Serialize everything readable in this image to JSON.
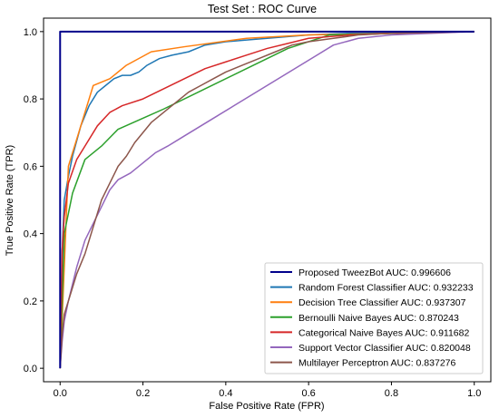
{
  "chart_data": {
    "type": "line",
    "title": "Test Set : ROC Curve",
    "xlabel": "False Positive Rate (FPR)",
    "ylabel": "True Positive Rate (TPR)",
    "xlim": [
      -0.04,
      1.04
    ],
    "ylim": [
      -0.04,
      1.04
    ],
    "xticks": [
      0.0,
      0.2,
      0.4,
      0.6,
      0.8,
      1.0
    ],
    "yticks": [
      0.0,
      0.2,
      0.4,
      0.6,
      0.8,
      1.0
    ],
    "xtick_labels": [
      "0.0",
      "0.2",
      "0.4",
      "0.6",
      "0.8",
      "1.0"
    ],
    "ytick_labels": [
      "0.0",
      "0.2",
      "0.4",
      "0.6",
      "0.8",
      "1.0"
    ],
    "grid": false,
    "legend_position": "lower-right",
    "series": [
      {
        "name": "Proposed TweezBot AUC: 0.996606",
        "color": "#00008b",
        "x": [
          0,
          0,
          0.005,
          1
        ],
        "y": [
          0,
          1.0,
          1.0,
          1.0
        ]
      },
      {
        "name": "Random Forest Classifier AUC: 0.932233",
        "color": "#1f77b4",
        "x": [
          0,
          0.005,
          0.01,
          0.02,
          0.03,
          0.05,
          0.07,
          0.09,
          0.11,
          0.13,
          0.15,
          0.17,
          0.19,
          0.21,
          0.24,
          0.27,
          0.31,
          0.35,
          0.4,
          0.45,
          0.5,
          0.55,
          0.6,
          0.7,
          0.8,
          1.0
        ],
        "y": [
          0,
          0.35,
          0.5,
          0.57,
          0.63,
          0.72,
          0.78,
          0.82,
          0.84,
          0.86,
          0.87,
          0.87,
          0.88,
          0.9,
          0.92,
          0.93,
          0.94,
          0.96,
          0.97,
          0.975,
          0.98,
          0.985,
          0.99,
          0.995,
          0.997,
          1.0
        ]
      },
      {
        "name": "Decision Tree Classifier AUC: 0.937307",
        "color": "#ff7f0e",
        "x": [
          0,
          0.02,
          0.08,
          0.12,
          0.16,
          0.22,
          0.3,
          0.45,
          0.6,
          1.0
        ],
        "y": [
          0,
          0.6,
          0.84,
          0.86,
          0.9,
          0.94,
          0.955,
          0.98,
          0.99,
          1.0
        ]
      },
      {
        "name": "Bernoulli Naive Bayes AUC: 0.870243",
        "color": "#2ca02c",
        "x": [
          0,
          0.01,
          0.03,
          0.06,
          0.1,
          0.14,
          0.25,
          0.35,
          0.45,
          0.55,
          0.65,
          1.0
        ],
        "y": [
          0,
          0.4,
          0.52,
          0.62,
          0.66,
          0.71,
          0.77,
          0.83,
          0.89,
          0.95,
          0.99,
          1.0
        ]
      },
      {
        "name": "Categorical Naive Bayes AUC: 0.911682",
        "color": "#d62728",
        "x": [
          0,
          0.005,
          0.01,
          0.02,
          0.04,
          0.06,
          0.09,
          0.12,
          0.15,
          0.2,
          0.25,
          0.3,
          0.35,
          0.4,
          0.45,
          0.5,
          0.55,
          0.6,
          0.7,
          0.8,
          1.0
        ],
        "y": [
          0,
          0.35,
          0.45,
          0.55,
          0.62,
          0.66,
          0.72,
          0.76,
          0.78,
          0.8,
          0.83,
          0.86,
          0.89,
          0.91,
          0.93,
          0.95,
          0.965,
          0.98,
          0.99,
          0.995,
          1.0
        ]
      },
      {
        "name": "Support Vector Classifier AUC: 0.820048",
        "color": "#9467bd",
        "x": [
          0,
          0.005,
          0.01,
          0.02,
          0.04,
          0.06,
          0.08,
          0.1,
          0.12,
          0.14,
          0.17,
          0.2,
          0.23,
          0.26,
          0.3,
          0.34,
          0.38,
          0.42,
          0.46,
          0.5,
          0.54,
          0.58,
          0.62,
          0.66,
          0.72,
          0.8,
          1.0
        ],
        "y": [
          0,
          0.08,
          0.14,
          0.2,
          0.3,
          0.38,
          0.43,
          0.48,
          0.53,
          0.56,
          0.58,
          0.61,
          0.64,
          0.66,
          0.69,
          0.72,
          0.75,
          0.78,
          0.81,
          0.84,
          0.87,
          0.9,
          0.93,
          0.96,
          0.98,
          0.99,
          1.0
        ]
      },
      {
        "name": "Multilayer Perceptron AUC: 0.837276",
        "color": "#8c564b",
        "x": [
          0,
          0.005,
          0.01,
          0.02,
          0.04,
          0.06,
          0.08,
          0.1,
          0.12,
          0.14,
          0.16,
          0.18,
          0.2,
          0.22,
          0.25,
          0.28,
          0.31,
          0.34,
          0.37,
          0.4,
          0.44,
          0.48,
          0.52,
          0.56,
          0.6,
          0.66,
          0.72,
          0.8,
          1.0
        ],
        "y": [
          0,
          0.1,
          0.16,
          0.2,
          0.28,
          0.34,
          0.42,
          0.5,
          0.55,
          0.6,
          0.63,
          0.67,
          0.7,
          0.73,
          0.76,
          0.79,
          0.82,
          0.84,
          0.86,
          0.88,
          0.9,
          0.92,
          0.94,
          0.96,
          0.97,
          0.98,
          0.99,
          0.995,
          1.0
        ]
      }
    ]
  }
}
